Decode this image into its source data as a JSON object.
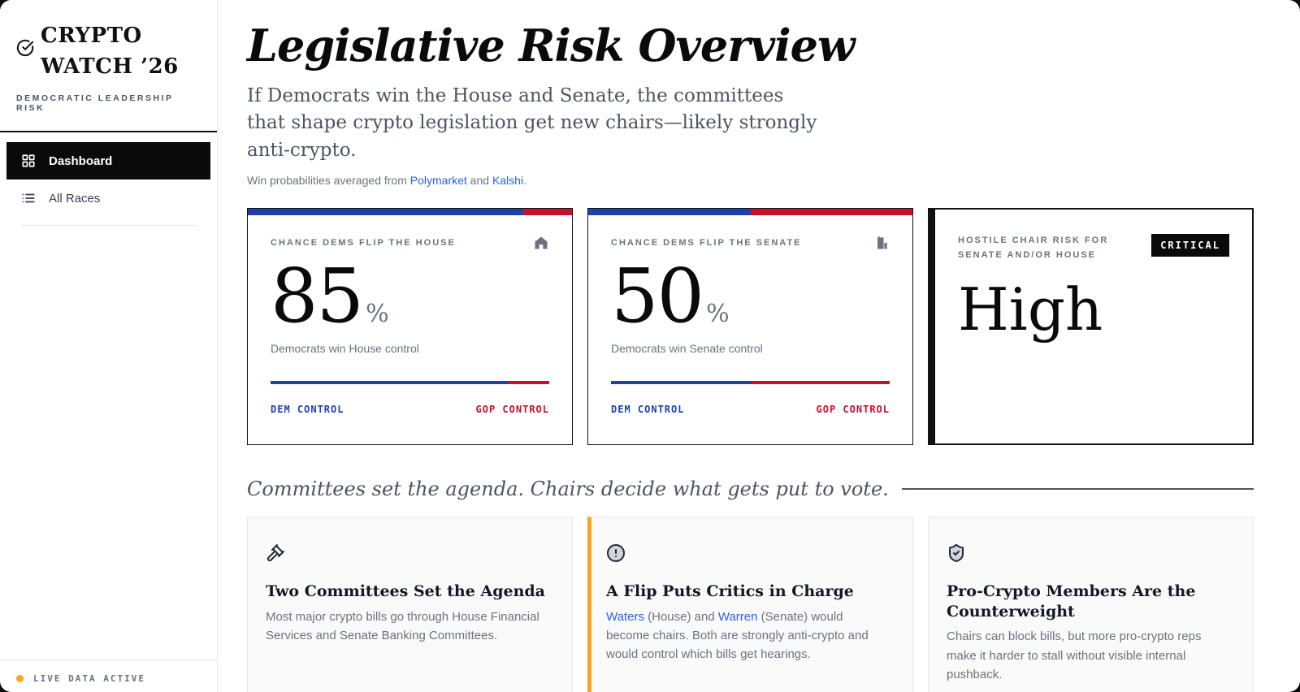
{
  "colors": {
    "dem_blue": "#1e40af",
    "gop_red": "#c8102e",
    "link_blue": "#2563eb",
    "accent_amber": "#f5a623",
    "badge_black": "#0a0a0a"
  },
  "sidebar": {
    "logo_line1": "CRYPTO",
    "logo_line2": "WATCH ’26",
    "tagline": "DEMOCRATIC LEADERSHIP RISK",
    "nav": [
      {
        "label": "Dashboard",
        "active": true
      },
      {
        "label": "All Races",
        "active": false
      }
    ],
    "live_status": "LIVE DATA ACTIVE"
  },
  "header": {
    "title": "Legislative Risk Overview",
    "subtitle": "If Democrats win the House and Senate, the committees that shape crypto legislation get new chairs—likely strongly anti-crypto.",
    "source_prefix": "Win probabilities averaged from ",
    "source_link1": "Polymarket",
    "source_mid": " and ",
    "source_link2": "Kalshi",
    "source_suffix": "."
  },
  "stat_cards": [
    {
      "label": "CHANCE DEMS FLIP THE HOUSE",
      "icon": "house-icon",
      "value": "85",
      "unit": "%",
      "caption": "Democrats win House control",
      "dem_pct": 85,
      "left_label": "DEM CONTROL",
      "right_label": "GOP CONTROL"
    },
    {
      "label": "CHANCE DEMS FLIP THE SENATE",
      "icon": "building-icon",
      "value": "50",
      "unit": "%",
      "caption": "Democrats win Senate control",
      "dem_pct": 50,
      "left_label": "DEM CONTROL",
      "right_label": "GOP CONTROL"
    },
    {
      "label": "HOSTILE CHAIR RISK FOR SENATE AND/OR HOUSE",
      "badge": "CRITICAL",
      "value": "High"
    }
  ],
  "section": {
    "heading": "Committees set the agenda. Chairs decide what gets put to vote."
  },
  "info_cards": [
    {
      "icon": "gavel-icon",
      "title": "Two Committees Set the Agenda",
      "body": "Most major crypto bills go through House Financial Services and Senate Banking Committees."
    },
    {
      "icon": "alert-circle-icon",
      "title": "A Flip Puts Critics in Charge",
      "body_link1": "Waters",
      "body_mid1": " (House) and ",
      "body_link2": "Warren",
      "body_rest": " (Senate) would become chairs. Both are strongly anti-crypto and would control which bills get hearings."
    },
    {
      "icon": "shield-check-icon",
      "title": "Pro-Crypto Members Are the Counterweight",
      "body": "Chairs can block bills, but more pro-crypto reps make it harder to stall without visible internal pushback."
    }
  ]
}
